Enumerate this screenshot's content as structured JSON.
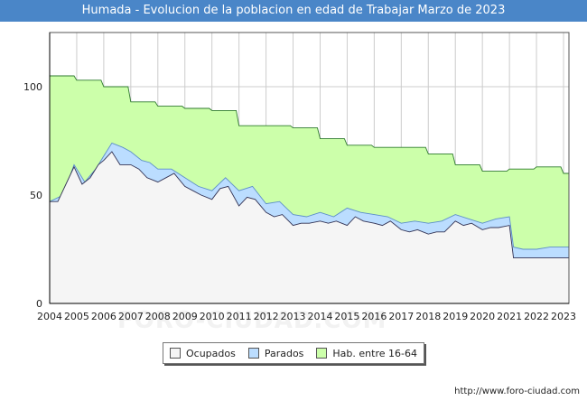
{
  "chart_data": {
    "type": "area",
    "title": "Humada - Evolucion de la poblacion en edad de Trabajar Marzo de 2023",
    "xlabel": "",
    "ylabel": "",
    "xlim": [
      2004,
      2023.2
    ],
    "ylim": [
      0,
      125
    ],
    "x_ticks": [
      "2004",
      "2005",
      "2006",
      "2007",
      "2008",
      "2009",
      "2010",
      "2011",
      "2012",
      "2013",
      "2014",
      "2015",
      "2016",
      "2017",
      "2018",
      "2019",
      "2020",
      "2021",
      "2022",
      "2023"
    ],
    "y_ticks": [
      "0",
      "50",
      "100"
    ],
    "y_tick_values": [
      0,
      50,
      100
    ],
    "series": [
      {
        "name": "Hab. entre 16-64",
        "color": "#ccffaa",
        "line": "#338833",
        "x": [
          2004.0,
          2004.9,
          2005.0,
          2005.9,
          2006.0,
          2006.9,
          2007.0,
          2007.9,
          2008.0,
          2008.9,
          2009.0,
          2009.9,
          2010.0,
          2010.9,
          2011.0,
          2011.9,
          2012.0,
          2012.9,
          2013.0,
          2013.9,
          2014.0,
          2014.9,
          2015.0,
          2015.9,
          2016.0,
          2016.9,
          2017.0,
          2017.9,
          2018.0,
          2018.9,
          2019.0,
          2019.9,
          2020.0,
          2020.9,
          2021.0,
          2021.9,
          2022.0,
          2022.9,
          2023.0,
          2023.2
        ],
        "values": [
          105,
          105,
          103,
          103,
          100,
          100,
          93,
          93,
          91,
          91,
          90,
          90,
          89,
          89,
          82,
          82,
          82,
          82,
          81,
          81,
          76,
          76,
          73,
          73,
          72,
          72,
          72,
          72,
          69,
          69,
          64,
          64,
          61,
          61,
          62,
          62,
          63,
          63,
          60,
          60
        ]
      },
      {
        "name": "Parados",
        "color": "#bbddff",
        "x": [
          2004.0,
          2004.5,
          2004.9,
          2005.3,
          2005.7,
          2006.0,
          2006.3,
          2006.7,
          2007.0,
          2007.4,
          2007.7,
          2008.0,
          2008.5,
          2009.0,
          2009.5,
          2010.0,
          2010.5,
          2011.0,
          2011.5,
          2012.0,
          2012.5,
          2013.0,
          2013.5,
          2014.0,
          2014.5,
          2015.0,
          2015.5,
          2016.0,
          2016.5,
          2017.0,
          2017.5,
          2018.0,
          2018.5,
          2019.0,
          2019.5,
          2020.0,
          2020.5,
          2021.0,
          2021.15,
          2021.5,
          2022.0,
          2022.5,
          2023.0,
          2023.2
        ],
        "values": [
          47,
          50,
          64,
          56,
          62,
          68,
          74,
          72,
          70,
          66,
          65,
          62,
          62,
          58,
          54,
          52,
          58,
          52,
          54,
          46,
          47,
          41,
          40,
          42,
          40,
          44,
          42,
          41,
          40,
          37,
          38,
          37,
          38,
          41,
          39,
          37,
          39,
          40,
          26,
          25,
          25,
          26,
          26,
          26
        ]
      },
      {
        "name": "Ocupados",
        "color": "#f5f5f5",
        "x": [
          2004.0,
          2004.3,
          2004.6,
          2004.9,
          2005.2,
          2005.5,
          2005.8,
          2006.0,
          2006.3,
          2006.6,
          2007.0,
          2007.3,
          2007.6,
          2008.0,
          2008.3,
          2008.6,
          2009.0,
          2009.3,
          2009.6,
          2010.0,
          2010.3,
          2010.6,
          2011.0,
          2011.3,
          2011.6,
          2012.0,
          2012.3,
          2012.6,
          2013.0,
          2013.3,
          2013.6,
          2014.0,
          2014.3,
          2014.6,
          2015.0,
          2015.3,
          2015.6,
          2016.0,
          2016.3,
          2016.6,
          2017.0,
          2017.3,
          2017.6,
          2018.0,
          2018.3,
          2018.6,
          2019.0,
          2019.3,
          2019.6,
          2020.0,
          2020.3,
          2020.6,
          2021.0,
          2021.15,
          2021.5,
          2022.0,
          2022.5,
          2023.0,
          2023.2
        ],
        "values": [
          47,
          47,
          55,
          63,
          55,
          58,
          64,
          66,
          70,
          64,
          64,
          62,
          58,
          56,
          58,
          60,
          54,
          52,
          50,
          48,
          53,
          54,
          45,
          49,
          48,
          42,
          40,
          41,
          36,
          37,
          37,
          38,
          37,
          38,
          36,
          40,
          38,
          37,
          36,
          38,
          34,
          33,
          34,
          32,
          33,
          33,
          38,
          36,
          37,
          34,
          35,
          35,
          36,
          21,
          21,
          21,
          21,
          21,
          21
        ]
      }
    ],
    "legend": [
      "Ocupados",
      "Parados",
      "Hab. entre 16-64"
    ],
    "grid": true
  },
  "legend": {
    "ocupados": "Ocupados",
    "parados": "Parados",
    "hab": "Hab. entre 16-64"
  },
  "colors": {
    "ocupados": "#f5f5f5",
    "parados": "#bbddff",
    "hab": "#ccffaa"
  },
  "credit": "http://www.foro-ciudad.com",
  "watermark": "FORO-CIUDAD.COM"
}
